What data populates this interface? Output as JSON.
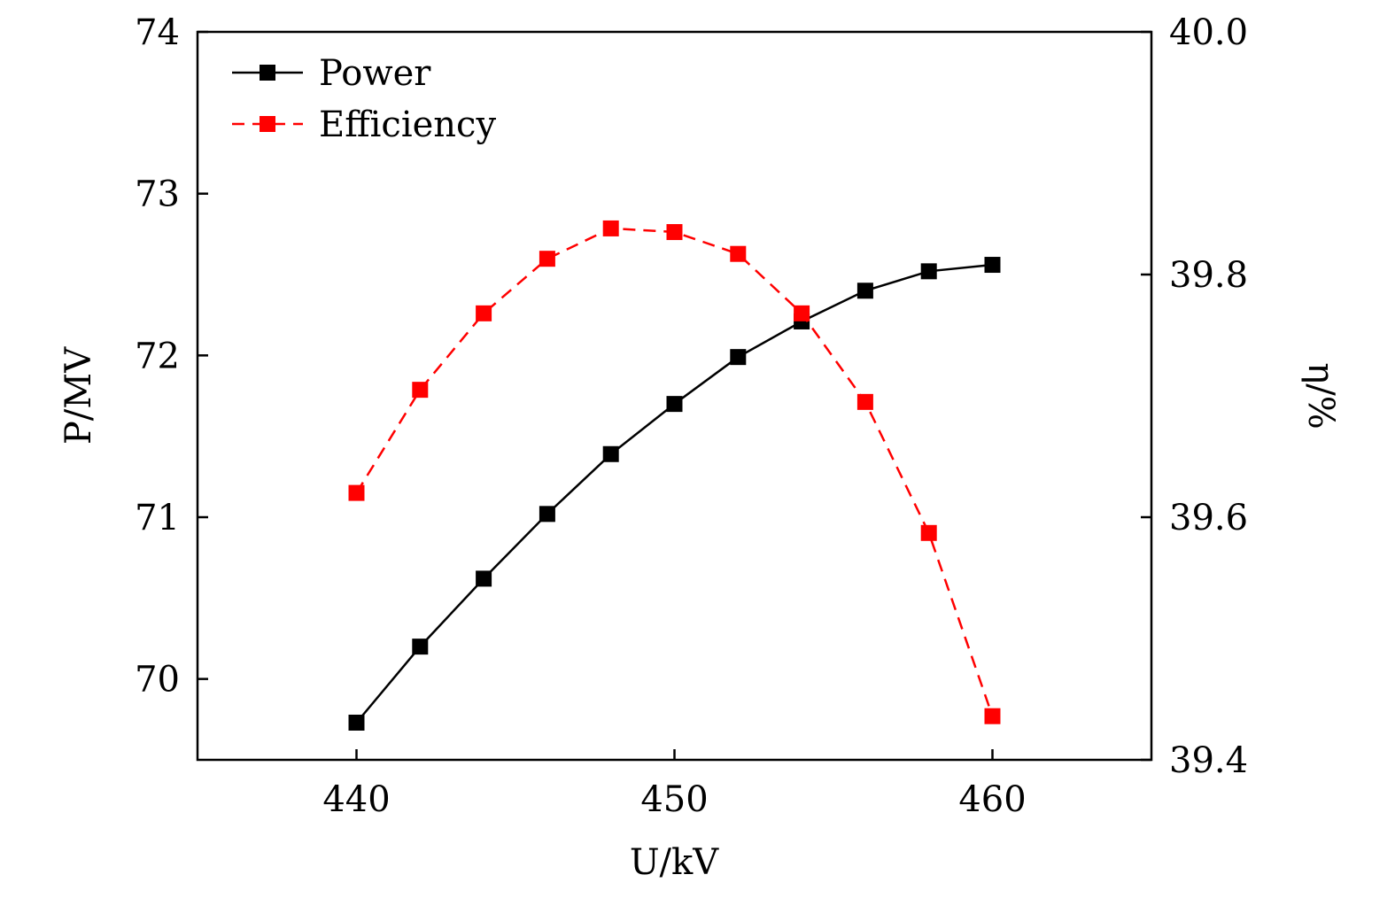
{
  "chart_data": {
    "type": "line",
    "x": [
      440,
      442,
      444,
      446,
      448,
      450,
      452,
      454,
      456,
      458,
      460
    ],
    "xlabel": "U/kV",
    "ylabel_left": "P/MV",
    "ylabel_right": "η/%",
    "xlim": [
      435,
      465
    ],
    "ylim_left": [
      69.5,
      74
    ],
    "ylim_right": [
      39.4,
      40.0
    ],
    "x_ticks": [
      "440",
      "450",
      "460"
    ],
    "y_left_ticks": [
      "70",
      "71",
      "72",
      "73",
      "74"
    ],
    "y_right_ticks": [
      "39.4",
      "39.6",
      "39.8",
      "40.0"
    ],
    "grid": false,
    "legend_position": "top-left",
    "series": [
      {
        "name": "Power",
        "axis": "left",
        "color": "#000000",
        "line_style": "solid",
        "marker": "square",
        "values": [
          69.73,
          70.2,
          70.62,
          71.02,
          71.39,
          71.7,
          71.99,
          72.21,
          72.4,
          72.52,
          72.56
        ]
      },
      {
        "name": "Efficiency",
        "axis": "right",
        "color": "#ff0000",
        "line_style": "dashed",
        "marker": "square",
        "values": [
          39.62,
          39.705,
          39.768,
          39.813,
          39.838,
          39.835,
          39.817,
          39.768,
          39.695,
          39.587,
          39.436
        ]
      }
    ]
  }
}
